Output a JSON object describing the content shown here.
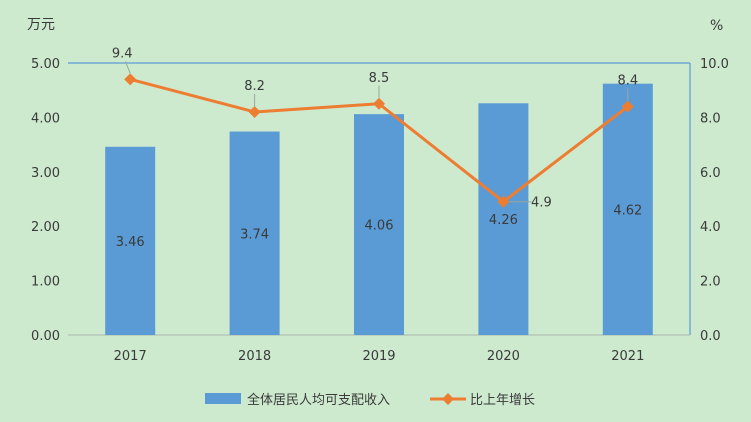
{
  "chart_data": {
    "type": "bar",
    "categories": [
      "2017",
      "2018",
      "2019",
      "2020",
      "2021"
    ],
    "y_left_unit": "万元",
    "y_right_unit": "%",
    "y_left_ticks": [
      "0.00",
      "1.00",
      "2.00",
      "3.00",
      "4.00",
      "5.00"
    ],
    "y_right_ticks": [
      "0.0",
      "2.0",
      "4.0",
      "6.0",
      "8.0",
      "10.0"
    ],
    "ylim_left": [
      0,
      5
    ],
    "ylim_right": [
      0,
      10
    ],
    "grid": false,
    "legend_position": "bottom",
    "series": [
      {
        "name": "全体居民人均可支配收入",
        "type": "bar",
        "axis": "left",
        "color": "#5b9bd5",
        "values": [
          3.46,
          3.74,
          4.06,
          4.26,
          4.62
        ],
        "labels": [
          "3.46",
          "3.74",
          "4.06",
          "4.26",
          "4.62"
        ]
      },
      {
        "name": "比上年增长",
        "type": "line",
        "axis": "right",
        "color": "#ed7d31",
        "values": [
          9.4,
          8.2,
          8.5,
          4.9,
          8.4
        ],
        "labels": [
          "9.4",
          "8.2",
          "8.5",
          "4.9",
          "8.4"
        ]
      }
    ]
  }
}
